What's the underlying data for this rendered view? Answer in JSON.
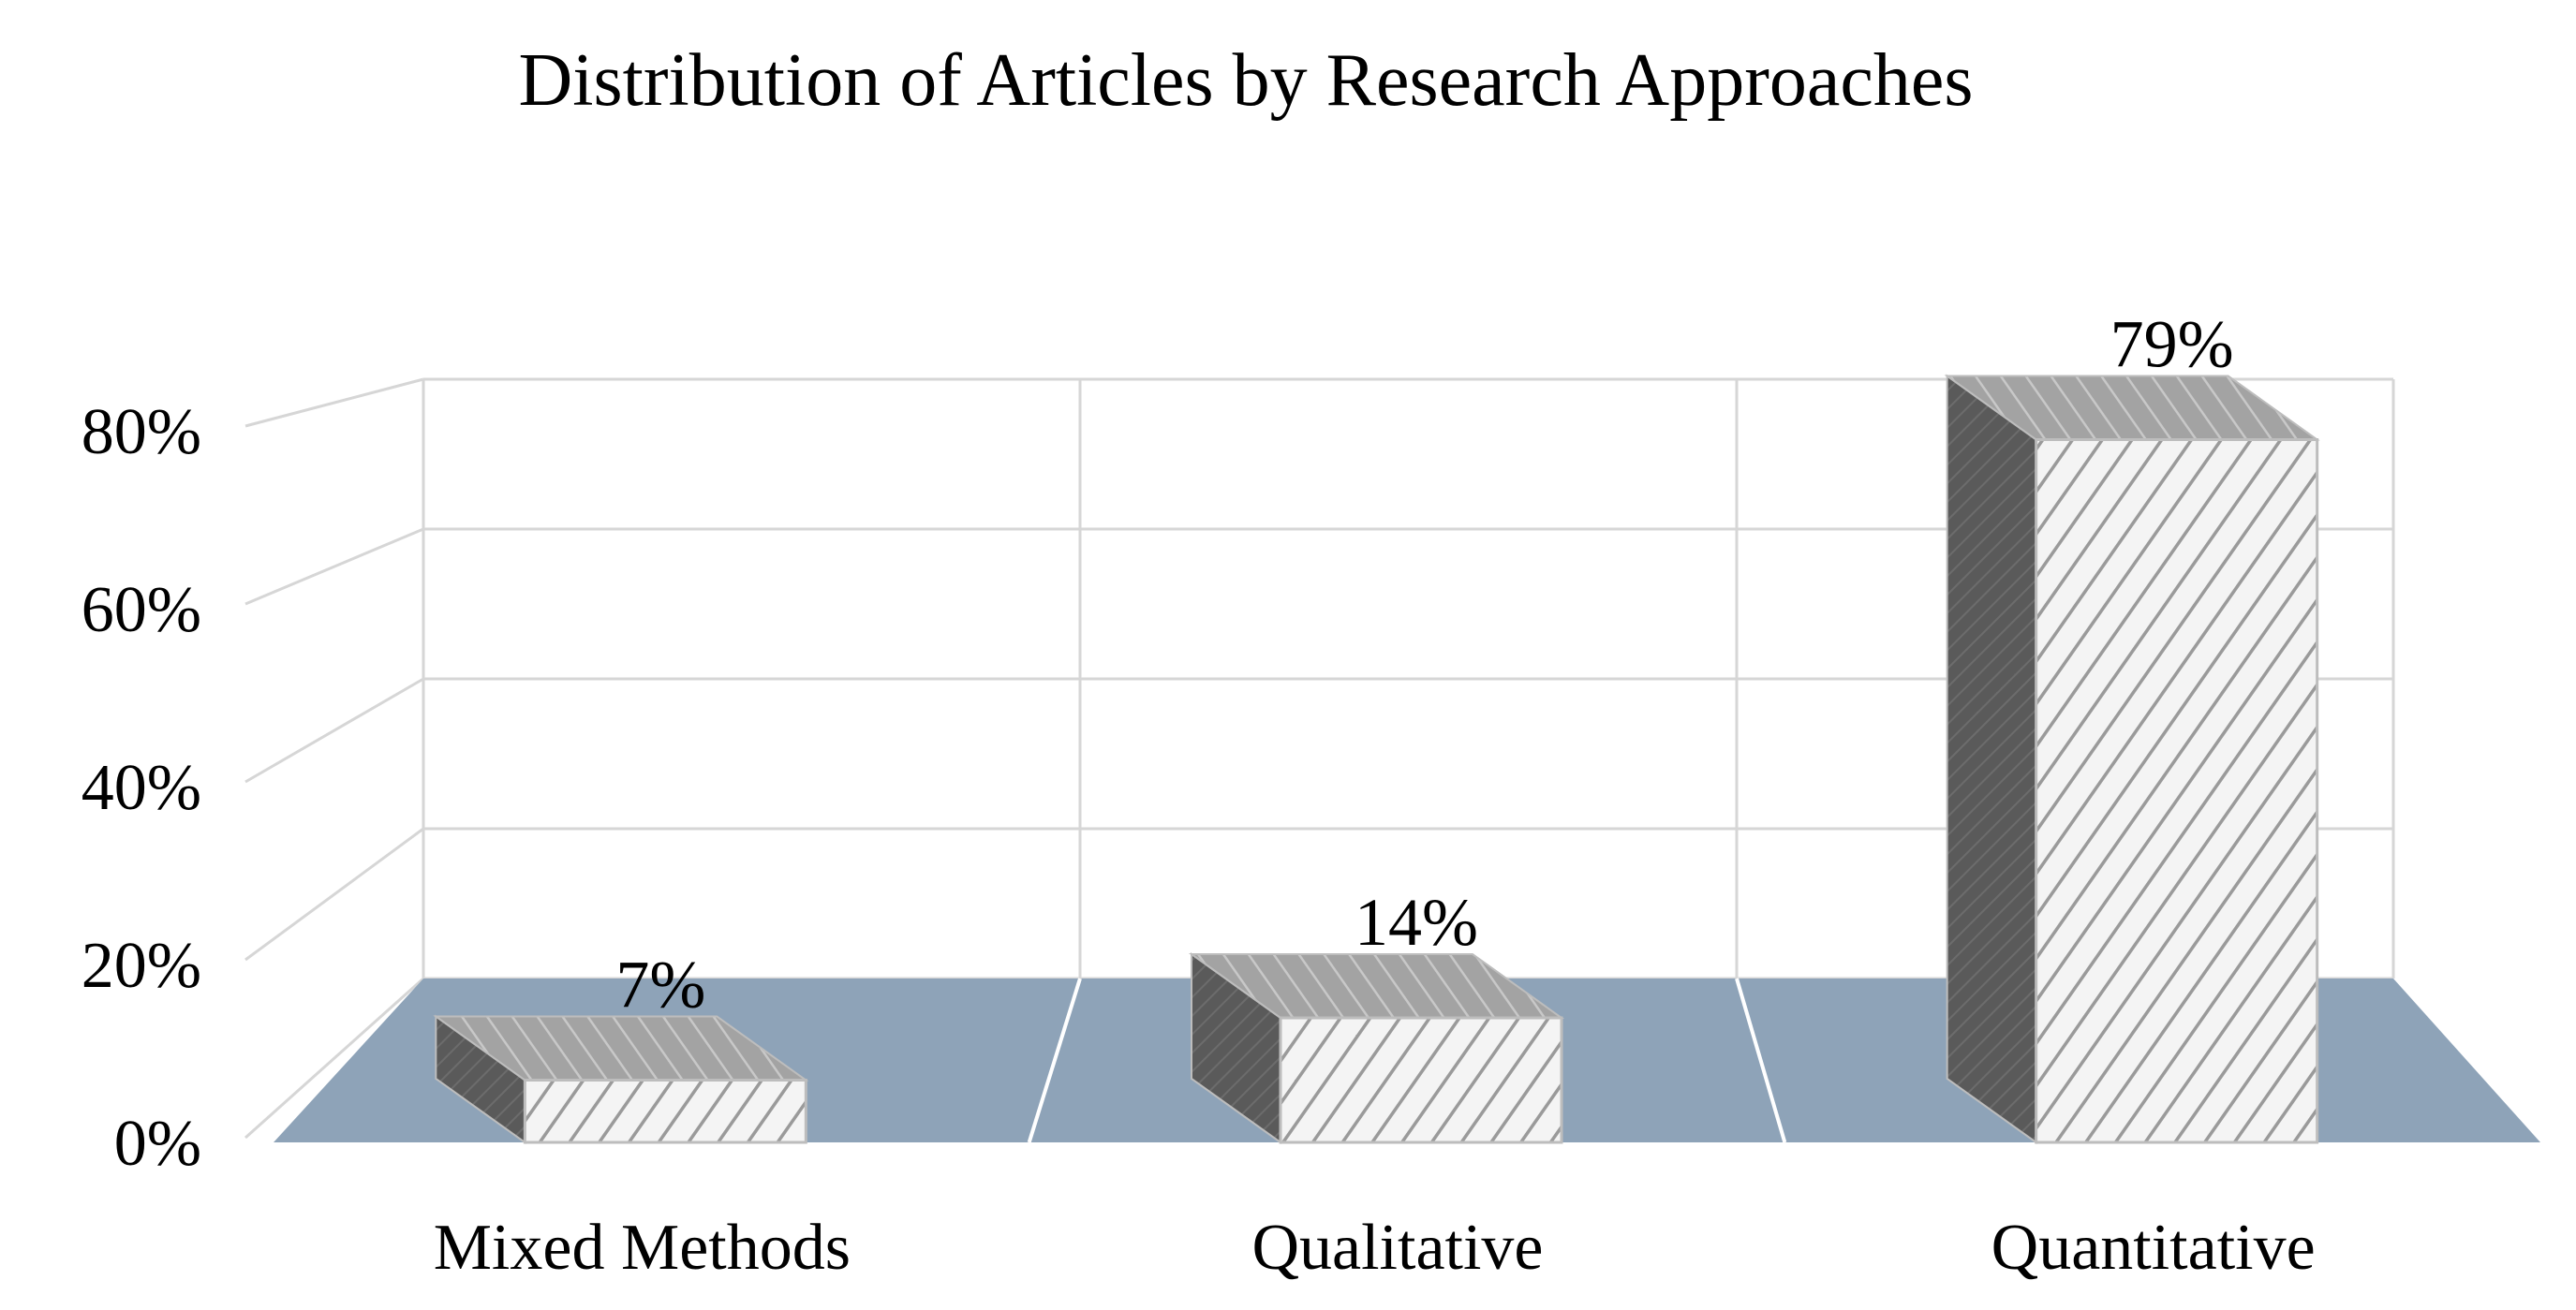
{
  "chart_data": {
    "type": "bar",
    "title": "Distribution of Articles by Research Approaches",
    "categories": [
      "Mixed Methods",
      "Qualitative",
      "Quantitative"
    ],
    "values": [
      7,
      14,
      79
    ],
    "value_labels": [
      "7%",
      "14%",
      "79%"
    ],
    "y_ticks": [
      0,
      20,
      40,
      60,
      80
    ],
    "y_tick_labels": [
      "0%",
      "20%",
      "40%",
      "60%",
      "80%"
    ],
    "ylim": [
      0,
      80
    ],
    "xlabel": "",
    "ylabel": "",
    "grid": true,
    "legend": "none",
    "style": "3d-column",
    "colors": {
      "floor": "#8ea3b8",
      "grid": "#d6d6d6",
      "bar_front": "#f4f4f4",
      "bar_hatch": "#9a9a9a",
      "bar_top": "#a0a0a0",
      "bar_side": "#5c5c5c",
      "outline": "#bdbdbd"
    }
  }
}
